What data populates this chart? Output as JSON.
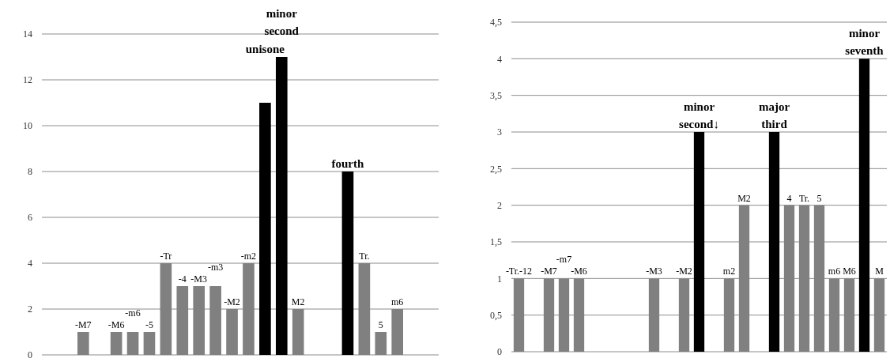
{
  "chart_data": [
    {
      "type": "bar",
      "categories": [
        null,
        null,
        "-M7",
        null,
        "-M6",
        "-m6",
        "-5",
        "-Tr",
        "-4",
        "-M3",
        "-m3",
        "-M2",
        "-m2",
        "unisone",
        "minor second",
        "M2",
        null,
        null,
        "fourth",
        "Tr.",
        "5",
        "m6",
        null,
        null
      ],
      "values": [
        0,
        0,
        1,
        0,
        1,
        1,
        1,
        4,
        3,
        3,
        3,
        2,
        4,
        11,
        13,
        2,
        0,
        0,
        8,
        4,
        1,
        2,
        0,
        0
      ],
      "colors": [
        "#808080",
        "#808080",
        "#808080",
        "#808080",
        "#808080",
        "#808080",
        "#808080",
        "#808080",
        "#808080",
        "#808080",
        "#808080",
        "#808080",
        "#808080",
        "#000000",
        "#000000",
        "#808080",
        "#808080",
        "#808080",
        "#000000",
        "#808080",
        "#808080",
        "#808080",
        "#808080",
        "#808080"
      ],
      "ylim": [
        0,
        14
      ],
      "yticks": [
        0,
        2,
        4,
        6,
        8,
        10,
        12,
        14
      ],
      "grid": "y"
    },
    {
      "type": "bar",
      "categories": [
        "-Tr.-12",
        null,
        "-M7",
        "-m7",
        "-M6",
        null,
        null,
        null,
        null,
        "-M3",
        null,
        "-M2",
        "minor second↓",
        null,
        "m2",
        "M2",
        null,
        "major third",
        "4",
        "Tr.",
        "5",
        "m6",
        "M6",
        "minor seventh",
        "M"
      ],
      "values": [
        1,
        0,
        1,
        1,
        1,
        0,
        0,
        0,
        0,
        1,
        0,
        1,
        3,
        0,
        1,
        2,
        0,
        3,
        2,
        2,
        2,
        1,
        1,
        4,
        1
      ],
      "colors": [
        "#808080",
        "#808080",
        "#808080",
        "#808080",
        "#808080",
        "#808080",
        "#808080",
        "#808080",
        "#808080",
        "#808080",
        "#808080",
        "#808080",
        "#000000",
        "#808080",
        "#808080",
        "#808080",
        "#808080",
        "#000000",
        "#808080",
        "#808080",
        "#808080",
        "#808080",
        "#808080",
        "#000000",
        "#808080"
      ],
      "ylim": [
        0,
        4.5
      ],
      "yticks": [
        0,
        {
          "value": 0.5,
          "label": "0,5"
        },
        1,
        {
          "value": 1.5,
          "label": "1,5"
        },
        2,
        {
          "value": 2.5,
          "label": "2,5"
        },
        3,
        {
          "value": 3.5,
          "label": "3,5"
        },
        4,
        {
          "value": 4.5,
          "label": "4,5"
        }
      ],
      "grid": "y"
    }
  ]
}
